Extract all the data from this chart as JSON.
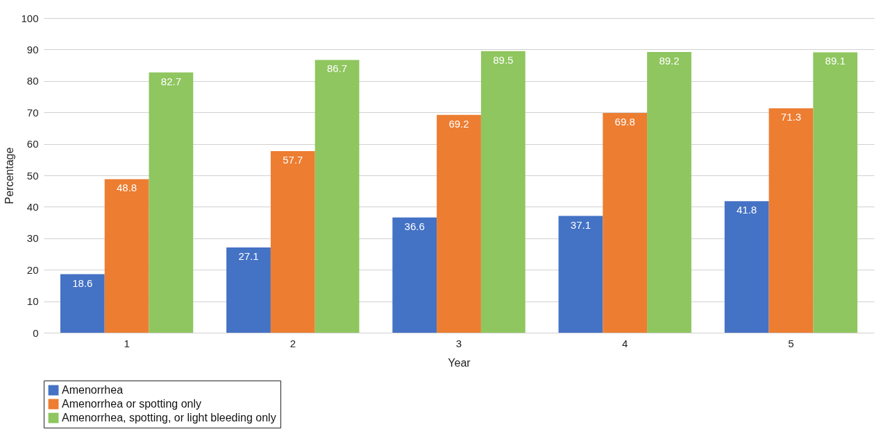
{
  "chart_data": {
    "type": "bar",
    "xlabel": "Year",
    "ylabel": "Percentage",
    "categories": [
      "1",
      "2",
      "3",
      "4",
      "5"
    ],
    "series": [
      {
        "name": "Amenorrhea",
        "color": "#4472c4",
        "values": [
          18.6,
          27.1,
          36.6,
          37.1,
          41.8
        ]
      },
      {
        "name": "Amenorrhea or spotting only",
        "color": "#ed7d31",
        "values": [
          48.8,
          57.7,
          69.2,
          69.8,
          71.3
        ]
      },
      {
        "name": "Amenorrhea, spotting, or light bleeding only",
        "color": "#8fc65f",
        "values": [
          82.7,
          86.7,
          89.5,
          89.2,
          89.1
        ]
      }
    ],
    "ylim": [
      0,
      100
    ],
    "yticks": [
      0,
      10,
      20,
      30,
      40,
      50,
      60,
      70,
      80,
      90,
      100
    ],
    "grid": "y",
    "legend": "bottom",
    "data_labels": true
  }
}
